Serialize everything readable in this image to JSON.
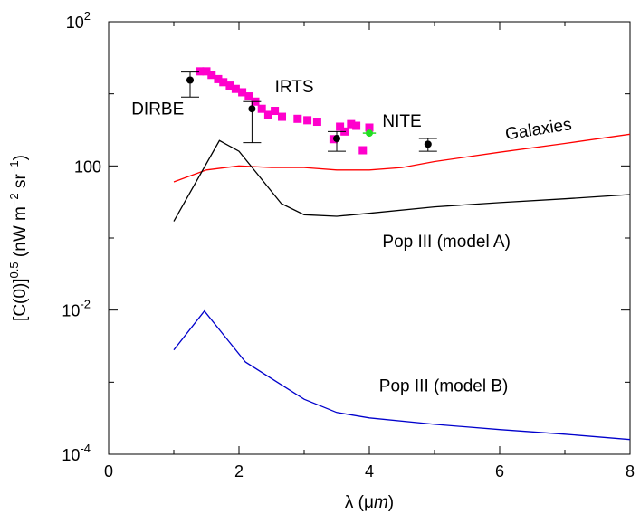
{
  "chart_data": {
    "type": "line",
    "xlabel": "λ (μm)",
    "ylabel": "[C(0)]0.5 (nW m−2 sr−1)",
    "xlim": [
      0,
      8
    ],
    "ylim": [
      0.0001,
      100
    ],
    "yscale": "log",
    "grid": false,
    "x_ticks": [
      {
        "value": 0,
        "label": "0"
      },
      {
        "value": 2,
        "label": "2"
      },
      {
        "value": 4,
        "label": "4"
      },
      {
        "value": 6,
        "label": "6"
      },
      {
        "value": 8,
        "label": "8"
      }
    ],
    "y_ticks": [
      {
        "value": 100,
        "base": "10",
        "exp": "2"
      },
      {
        "value": 1,
        "label": "10",
        "suffix": "0"
      },
      {
        "value": 0.01,
        "base": "10",
        "exp": "-2"
      },
      {
        "value": 0.0001,
        "base": "10",
        "exp": "-4"
      }
    ],
    "lines": [
      {
        "label": "Galaxies",
        "color": "#ff0000",
        "x": [
          1.0,
          1.5,
          2.0,
          2.5,
          3.0,
          3.5,
          4.0,
          4.5,
          5.0,
          6.0,
          7.0,
          8.0
        ],
        "y": [
          0.6,
          0.88,
          1.0,
          0.95,
          0.95,
          0.88,
          0.88,
          0.95,
          1.15,
          1.55,
          2.05,
          2.75
        ]
      },
      {
        "label": "Pop III (model A)",
        "color": "#000000",
        "x": [
          1.0,
          1.7,
          2.0,
          2.65,
          3.0,
          3.5,
          4.0,
          5.0,
          6.0,
          7.0,
          8.0
        ],
        "y": [
          0.17,
          2.25,
          1.6,
          0.3,
          0.21,
          0.2,
          0.22,
          0.27,
          0.31,
          0.35,
          0.4
        ]
      },
      {
        "label": "Pop III (model B)",
        "color": "#0000cc",
        "x": [
          1.0,
          1.47,
          2.1,
          3.0,
          3.5,
          4.0,
          5.0,
          6.0,
          7.0,
          8.0
        ],
        "y": [
          0.0028,
          0.0097,
          0.0019,
          0.00058,
          0.00038,
          0.00032,
          0.00026,
          0.00022,
          0.00019,
          0.00016
        ]
      }
    ],
    "irts_points": {
      "color": "#ff00cc",
      "x": [
        1.4,
        1.5,
        1.58,
        1.68,
        1.76,
        1.86,
        1.95,
        2.05,
        2.15,
        2.25,
        2.35,
        2.45,
        2.55,
        2.66,
        2.9,
        3.05,
        3.2,
        3.45,
        3.55,
        3.62,
        3.72,
        3.8,
        3.9,
        4.0
      ],
      "y": [
        20.5,
        20.5,
        18.3,
        16.0,
        14.5,
        13.0,
        11.7,
        10.5,
        9.2,
        7.8,
        6.2,
        5.1,
        5.8,
        4.8,
        4.5,
        4.3,
        4.1,
        2.35,
        3.5,
        3.0,
        3.8,
        3.6,
        1.65,
        3.4
      ]
    },
    "data_points": [
      {
        "x": 1.25,
        "y": 15.5,
        "err_low": 9.0,
        "err_high": 20.0,
        "color": "#000000"
      },
      {
        "x": 2.2,
        "y": 6.2,
        "err_low": 2.1,
        "err_high": 7.8,
        "color": "#000000"
      },
      {
        "x": 3.5,
        "y": 2.4,
        "err_low": 1.6,
        "err_high": 3.0,
        "color": "#000000"
      },
      {
        "x": 4.9,
        "y": 2.0,
        "err_low": 1.6,
        "err_high": 2.4,
        "color": "#000000"
      },
      {
        "x": 4.0,
        "y": 2.85,
        "xerr": 0.1,
        "color": "#22dd22"
      }
    ],
    "annotations": [
      {
        "text": "DIRBE",
        "x": 0.35,
        "y": 5.2
      },
      {
        "text": "IRTS",
        "x": 2.55,
        "y": 10.5
      },
      {
        "text": "NITE",
        "x": 4.2,
        "y": 3.5
      },
      {
        "text": "Galaxies",
        "x": 6.1,
        "y": 2.3,
        "rotate": -9
      },
      {
        "text": "Pop III (model A)",
        "x": 4.2,
        "y": 0.075
      },
      {
        "text": "Pop III (model B)",
        "x": 4.15,
        "y": 0.00075
      }
    ]
  }
}
